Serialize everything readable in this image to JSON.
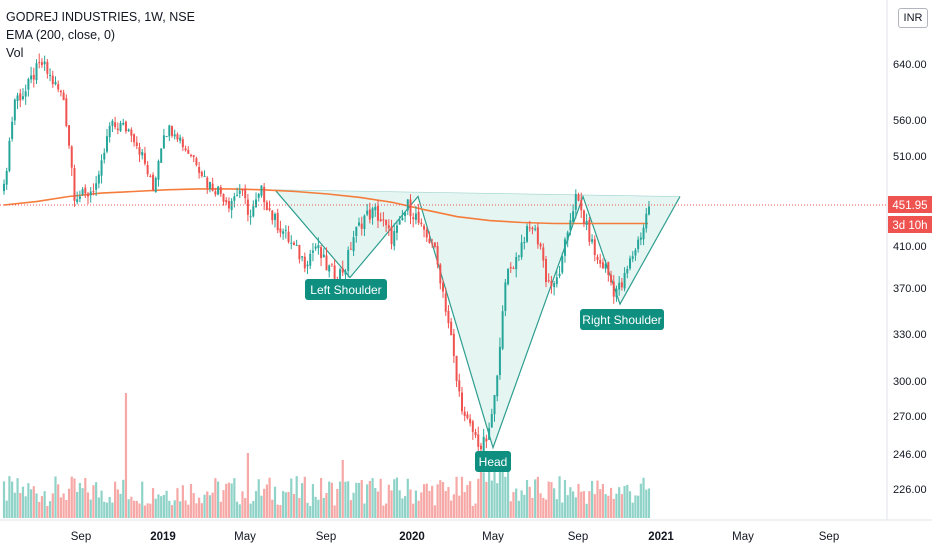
{
  "header": {
    "symbol_line": "GODREJ INDUSTRIES, 1W, NSE",
    "ema_line": "EMA (200, close, 0)",
    "vol_line": "Vol"
  },
  "currency_badge": "INR",
  "price_label": "451.95",
  "countdown_label": "3d 10h",
  "annotations": {
    "left_shoulder": "Left Shoulder",
    "head": "Head",
    "right_shoulder": "Right Shoulder"
  },
  "colors": {
    "up": "#26a69a",
    "down": "#ef5350",
    "vol_up": "#8fd3c8",
    "vol_down": "#f6a8a6",
    "ema": "#f57c3b",
    "pattern_fill": "#dff3f0",
    "pattern_line": "#2e9e8f",
    "label_bg": "#0f8f80",
    "price_tag": "#ef5350"
  },
  "chart_data": {
    "type": "candlestick",
    "title": "GODREJ INDUSTRIES, 1W, NSE",
    "y_ticks": [
      226,
      246,
      270,
      300,
      330,
      370,
      410,
      510,
      560,
      640
    ],
    "x_ticks": [
      "Sep",
      "2019",
      "May",
      "Sep",
      "2020",
      "May",
      "Sep",
      "2021",
      "May",
      "Sep"
    ],
    "last_price": 451.95,
    "ema_200": [
      {
        "x": 0,
        "y": 452
      },
      {
        "x": 0.05,
        "y": 456
      },
      {
        "x": 0.1,
        "y": 462
      },
      {
        "x": 0.15,
        "y": 466
      },
      {
        "x": 0.2,
        "y": 468
      },
      {
        "x": 0.25,
        "y": 470
      },
      {
        "x": 0.3,
        "y": 471
      },
      {
        "x": 0.35,
        "y": 471
      },
      {
        "x": 0.4,
        "y": 470
      },
      {
        "x": 0.45,
        "y": 468
      },
      {
        "x": 0.5,
        "y": 465
      },
      {
        "x": 0.55,
        "y": 461
      },
      {
        "x": 0.6,
        "y": 455
      },
      {
        "x": 0.65,
        "y": 447
      },
      {
        "x": 0.7,
        "y": 440
      },
      {
        "x": 0.75,
        "y": 436
      },
      {
        "x": 0.8,
        "y": 434
      },
      {
        "x": 0.85,
        "y": 433
      }
    ],
    "pattern_points": {
      "left_shoulder": 380,
      "neckline": 462,
      "head": 250,
      "right_shoulder": 356
    }
  }
}
